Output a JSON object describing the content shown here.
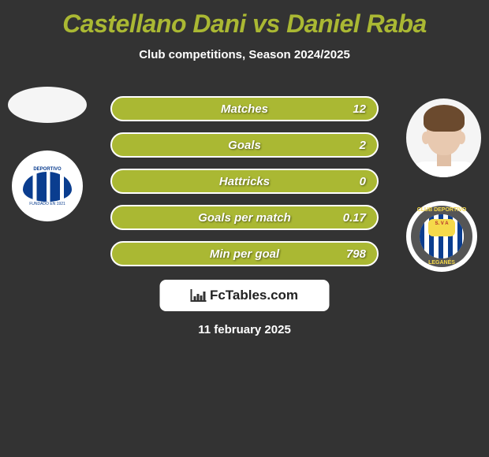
{
  "title": "Castellano Dani vs Daniel Raba",
  "subtitle": "Club competitions, Season 2024/2025",
  "stats": [
    {
      "label": "Matches",
      "value_right": "12"
    },
    {
      "label": "Goals",
      "value_right": "2"
    },
    {
      "label": "Hattricks",
      "value_right": "0"
    },
    {
      "label": "Goals per match",
      "value_right": "0.17"
    },
    {
      "label": "Min per goal",
      "value_right": "798"
    }
  ],
  "footer_brand": "FcTables.com",
  "date": "11 february 2025",
  "colors": {
    "background": "#333333",
    "accent": "#aab833",
    "bar_border": "#ffffff",
    "text_light": "#ffffff"
  },
  "left_club": {
    "name": "Deportivo Alavés",
    "text_top": "DEPORTIVO",
    "text_bottom": "FUNDADO EN 1921"
  },
  "right_club": {
    "name": "Leganés",
    "ring_top": "CLUB DEPORTIVO",
    "ring_bottom": "LEGANÉS",
    "inner": "S. V A"
  }
}
